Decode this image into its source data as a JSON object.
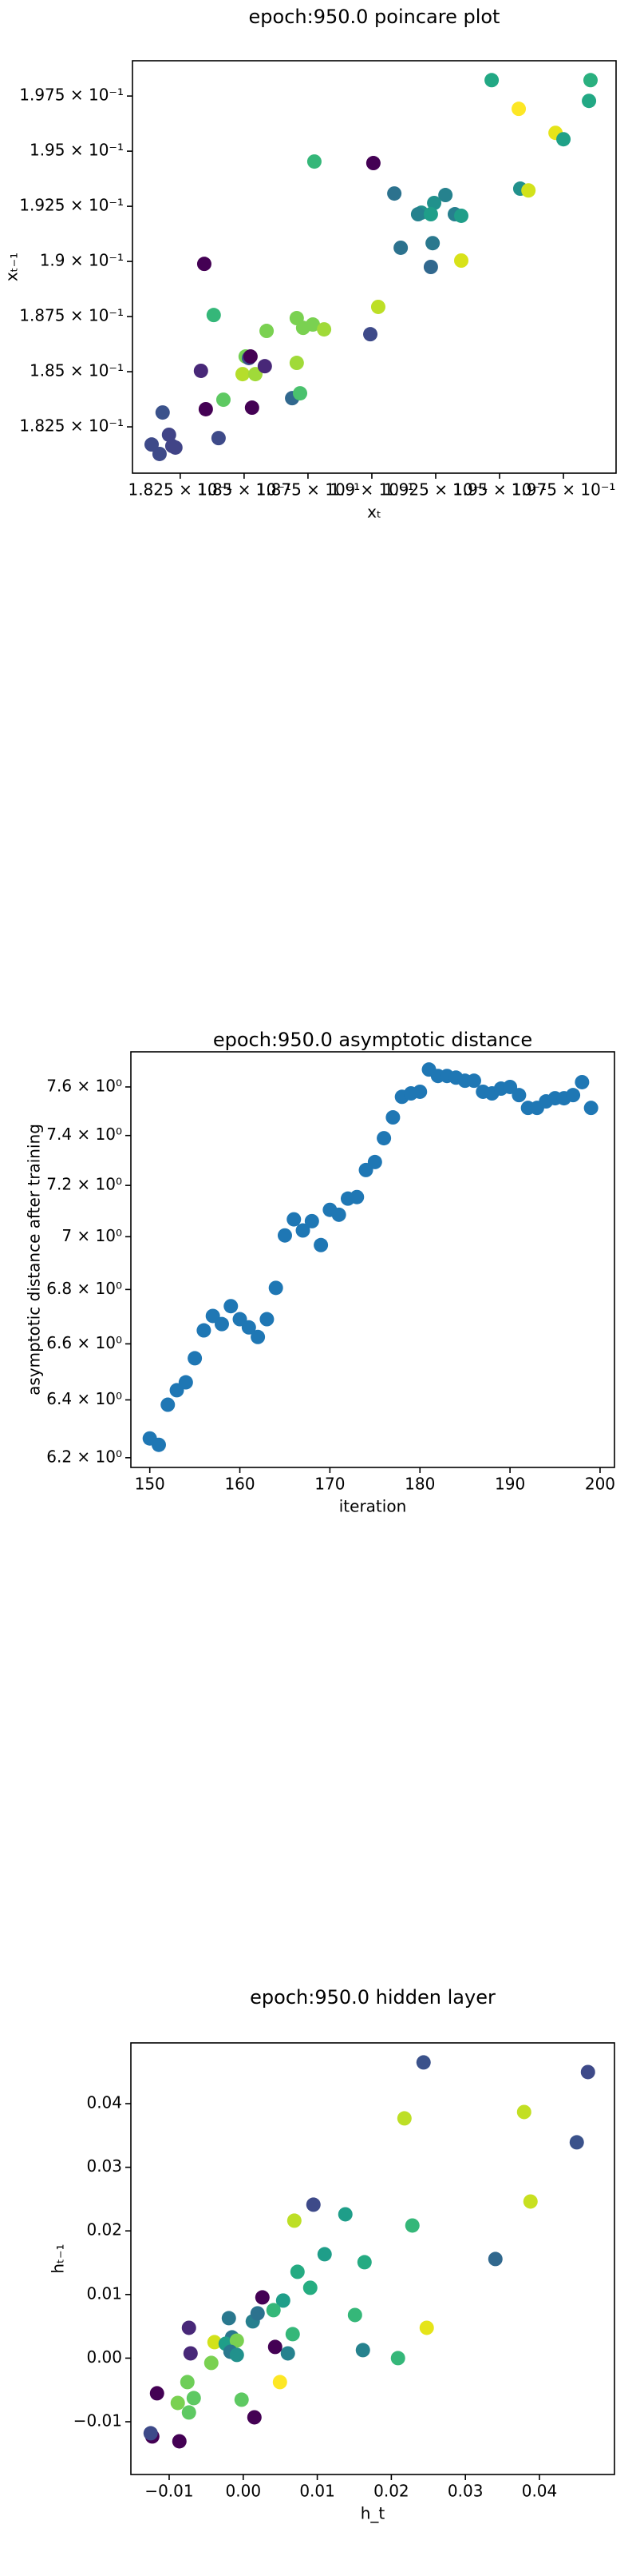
{
  "chart_data": [
    {
      "type": "scatter",
      "title": "epoch:950.0 poincare plot",
      "xlabel": "xₜ",
      "ylabel": "xₜ₋₁",
      "xlim": [
        0.18063,
        0.19956
      ],
      "ylim": [
        0.1804,
        0.1991
      ],
      "xticks": [
        {
          "value": 0.1825,
          "label": "1.825 × 10⁻¹"
        },
        {
          "value": 0.185,
          "label": "1.85 × 10⁻¹"
        },
        {
          "value": 0.1875,
          "label": "1.875 × 10⁻¹"
        },
        {
          "value": 0.19,
          "label": "1.9 × 10⁻¹"
        },
        {
          "value": 0.1925,
          "label": "1.925 × 10⁻¹"
        },
        {
          "value": 0.195,
          "label": "1.95 × 10⁻¹"
        },
        {
          "value": 0.1975,
          "label": "1.975 × 10⁻¹"
        }
      ],
      "yticks": [
        {
          "value": 0.1825,
          "label": "1.825 × 10⁻¹"
        },
        {
          "value": 0.185,
          "label": "1.85 × 10⁻¹"
        },
        {
          "value": 0.1875,
          "label": "1.875 × 10⁻¹"
        },
        {
          "value": 0.19,
          "label": "1.9 × 10⁻¹"
        },
        {
          "value": 0.1925,
          "label": "1.925 × 10⁻¹"
        },
        {
          "value": 0.195,
          "label": "1.95 × 10⁻¹"
        },
        {
          "value": 0.1975,
          "label": "1.975 × 10⁻¹"
        }
      ],
      "x": [
        0.19469,
        0.19856,
        0.19575,
        0.1985,
        0.19719,
        0.1975,
        0.19581,
        0.19613,
        0.18775,
        0.19006,
        0.19088,
        0.19288,
        0.19244,
        0.19194,
        0.19181,
        0.19231,
        0.19325,
        0.1935,
        0.19113,
        0.19238,
        0.19231,
        0.1935,
        0.18344,
        0.19025,
        0.18381,
        0.18706,
        0.18731,
        0.18769,
        0.18813,
        0.18706,
        0.18994,
        0.18588,
        0.18506,
        0.18519,
        0.18525,
        0.18331,
        0.18494,
        0.18544,
        0.18581,
        0.18688,
        0.18719,
        0.18419,
        0.1835,
        0.18531,
        0.18181,
        0.184,
        0.18206,
        0.18219,
        0.18138,
        0.18169,
        0.18231
      ],
      "y": [
        0.19822,
        0.19822,
        0.19692,
        0.19728,
        0.19583,
        0.19554,
        0.1933,
        0.19322,
        0.19453,
        0.19446,
        0.19308,
        0.19301,
        0.19265,
        0.19221,
        0.19214,
        0.19214,
        0.19214,
        0.19207,
        0.19062,
        0.19083,
        0.18975,
        0.19004,
        0.18989,
        0.18794,
        0.18757,
        0.18743,
        0.18699,
        0.18714,
        0.18692,
        0.1854,
        0.1867,
        0.18685,
        0.18569,
        0.18562,
        0.18569,
        0.18504,
        0.18489,
        0.18489,
        0.18525,
        0.1838,
        0.18402,
        0.18373,
        0.1833,
        0.18337,
        0.18315,
        0.18199,
        0.18214,
        0.18163,
        0.1817,
        0.18127,
        0.18156
      ],
      "colors": [
        "#22a884",
        "#2ab07f",
        "#fde725",
        "#22a884",
        "#e5e419",
        "#1fa187",
        "#21918c",
        "#d2e21b",
        "#35b779",
        "#440154",
        "#2c728e",
        "#26828e",
        "#21918c",
        "#21918c",
        "#26828e",
        "#1f9e89",
        "#277f8e",
        "#1f9e89",
        "#2c728e",
        "#2a788e",
        "#31688e",
        "#d8e219",
        "#440154",
        "#bddf26",
        "#35b779",
        "#7ad151",
        "#7ad151",
        "#7ad151",
        "#a0da39",
        "#a0da39",
        "#3e4a89",
        "#7ad151",
        "#75d054",
        "#3b528b",
        "#440154",
        "#482878",
        "#b5de2b",
        "#a0da39",
        "#482878",
        "#31688e",
        "#4ac16d",
        "#5ec962",
        "#440154",
        "#440154",
        "#3b528b",
        "#3e4a89",
        "#414487",
        "#414487",
        "#3e4a89",
        "#3e4a89",
        "#414487"
      ]
    },
    {
      "type": "scatter",
      "title": "epoch:950.0 asymptotic distance",
      "xlabel": "iteration",
      "ylabel": "asymptotic distance after training",
      "log_y": true,
      "color": "#1f77b4",
      "xlim": [
        147.9,
        201.6
      ],
      "ylim": [
        6.167,
        7.748
      ],
      "xticks": [
        150,
        160,
        170,
        180,
        190,
        200
      ],
      "yticks": [
        {
          "value": 6.2,
          "label": "6.2 × 10⁰"
        },
        {
          "value": 6.4,
          "label": "6.4 × 10⁰"
        },
        {
          "value": 6.6,
          "label": "6.6 × 10⁰"
        },
        {
          "value": 6.8,
          "label": "6.8 × 10⁰"
        },
        {
          "value": 7.0,
          "label": "7 × 10⁰"
        },
        {
          "value": 7.2,
          "label": "7.2 × 10⁰"
        },
        {
          "value": 7.4,
          "label": "7.4 × 10⁰"
        },
        {
          "value": 7.6,
          "label": "7.6 × 10⁰"
        }
      ],
      "x": [
        150,
        151,
        152,
        153,
        154,
        155,
        156,
        157,
        158,
        159,
        160,
        161,
        162,
        163,
        164,
        165,
        166,
        167,
        168,
        169,
        170,
        171,
        172,
        173,
        174,
        175,
        176,
        177,
        178,
        179,
        180,
        181,
        182,
        183,
        184,
        185,
        186,
        187,
        188,
        189,
        190,
        191,
        192,
        193,
        194,
        195,
        196,
        197,
        198,
        199
      ],
      "y": [
        6.266,
        6.244,
        6.383,
        6.434,
        6.462,
        6.548,
        6.649,
        6.702,
        6.672,
        6.738,
        6.69,
        6.66,
        6.625,
        6.69,
        6.806,
        7.005,
        7.067,
        7.024,
        7.06,
        6.968,
        7.104,
        7.085,
        7.148,
        7.154,
        7.261,
        7.293,
        7.389,
        7.474,
        7.559,
        7.573,
        7.58,
        7.673,
        7.646,
        7.646,
        7.639,
        7.626,
        7.626,
        7.58,
        7.573,
        7.593,
        7.6,
        7.566,
        7.513,
        7.513,
        7.54,
        7.553,
        7.553,
        7.566,
        7.62,
        7.513
      ]
    },
    {
      "type": "scatter",
      "title": "epoch:950.0 hidden layer",
      "xlabel": "h_t",
      "ylabel": "hₜ₋₁",
      "xlim": [
        -0.01517,
        0.05013
      ],
      "ylim": [
        -0.01829,
        0.04955
      ],
      "xticks": [
        {
          "value": -0.01,
          "label": "−0.01"
        },
        {
          "value": 0,
          "label": "0.00"
        },
        {
          "value": 0.01,
          "label": "0.01"
        },
        {
          "value": 0.02,
          "label": "0.02"
        },
        {
          "value": 0.03,
          "label": "0.03"
        },
        {
          "value": 0.04,
          "label": "0.04"
        }
      ],
      "yticks": [
        {
          "value": -0.01,
          "label": "−0.01"
        },
        {
          "value": 0,
          "label": "0.00"
        },
        {
          "value": 0.01,
          "label": "0.01"
        },
        {
          "value": 0.02,
          "label": "0.02"
        },
        {
          "value": 0.03,
          "label": "0.03"
        },
        {
          "value": 0.04,
          "label": "0.04"
        }
      ],
      "x": [
        0.02435,
        0.04655,
        0.02177,
        0.03793,
        0.04504,
        0.03879,
        0.0069,
        0.02284,
        0.00948,
        0.01379,
        0.01099,
        0.01638,
        0.03405,
        0.00733,
        0.00905,
        0.00539,
        0.00259,
        0.01509,
        0.00129,
        0.00194,
        0.00409,
        0.00668,
        -0.00194,
        -0.00151,
        -0.00388,
        -0.00733,
        -0.00237,
        -0.00086,
        0.00431,
        0.01616,
        0.02478,
        0.00603,
        0.0209,
        -0.00431,
        -0.00172,
        -0.00086,
        0.00496,
        -0.00711,
        -0.00754,
        -0.00022,
        -0.00668,
        -0.00884,
        -0.00733,
        0.00151,
        -0.01164,
        -0.01228,
        -0.0125,
        -0.00862
      ],
      "y": [
        0.04648,
        0.04497,
        0.03769,
        0.03869,
        0.03392,
        0.02462,
        0.02161,
        0.02085,
        0.02412,
        0.02261,
        0.01633,
        0.01508,
        0.01558,
        0.01357,
        0.01106,
        0.00905,
        0.00955,
        0.00678,
        0.00578,
        0.00704,
        0.00754,
        0.00377,
        0.00628,
        0.00327,
        0.00251,
        0.00477,
        0.00226,
        0.00276,
        0.00176,
        0.00126,
        0.00477,
        0.00075,
        0,
        -0.00075,
        0.001,
        0.0005,
        -0.00377,
        0.00075,
        -0.00377,
        -0.00653,
        -0.00628,
        -0.00704,
        -0.00854,
        -0.0093,
        -0.00553,
        -0.01231,
        -0.01181,
        -0.01307
      ],
      "colors": [
        "#3b528b",
        "#3e4a89",
        "#bddf26",
        "#c2df23",
        "#3b528b",
        "#c8e020",
        "#bddf26",
        "#35b779",
        "#3e4a89",
        "#1f9e89",
        "#1f9e89",
        "#25ab82",
        "#31688e",
        "#25ab82",
        "#26ad81",
        "#1f9e89",
        "#440154",
        "#35b779",
        "#277f8e",
        "#2c728e",
        "#35b779",
        "#35b779",
        "#2a788e",
        "#2a788e",
        "#d2e21b",
        "#482878",
        "#1f9e89",
        "#7ad151",
        "#440154",
        "#26828e",
        "#e5e419",
        "#26828e",
        "#35b779",
        "#7ad151",
        "#2a788e",
        "#21918c",
        "#fde725",
        "#482878",
        "#6ece58",
        "#5ec962",
        "#5ec962",
        "#7ad151",
        "#5ec962",
        "#440154",
        "#440154",
        "#440154",
        "#3e4a89",
        "#440154"
      ]
    }
  ]
}
